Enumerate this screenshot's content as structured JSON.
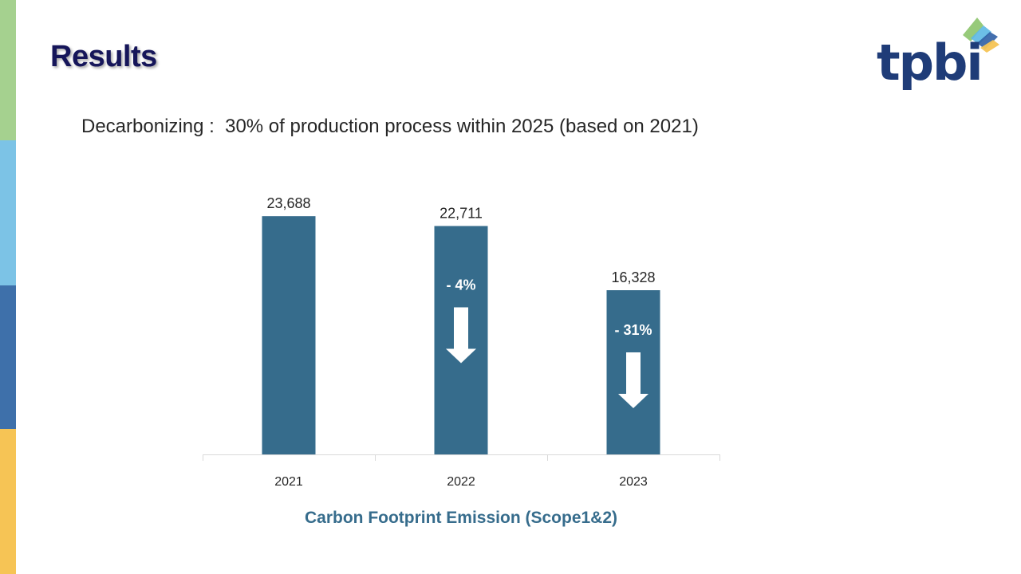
{
  "slide": {
    "title": "Results",
    "subtitle": "Decarbonizing :  30% of production process within 2025 (based on 2021)",
    "logo_text": "tpbi",
    "stripe_colors": [
      "#a5d18f",
      "#7cc3e6",
      "#3e70aa",
      "#f6c455"
    ]
  },
  "chart_data": {
    "type": "bar",
    "title": "Carbon Footprint Emission (Scope1&2)",
    "categories": [
      "2021",
      "2022",
      "2023"
    ],
    "values": [
      23688,
      22711,
      16328
    ],
    "value_labels": [
      "23,688",
      "22,711",
      "16,328"
    ],
    "annotations": [
      {
        "category": "2022",
        "text": "- 4%",
        "icon": "down-arrow-icon"
      },
      {
        "category": "2023",
        "text": "- 31%",
        "icon": "down-arrow-icon"
      }
    ],
    "xlabel": "",
    "ylabel": "",
    "ylim": [
      0,
      26000
    ],
    "grid": false,
    "legend": "none",
    "bar_color": "#366c8c",
    "axis_color": "#d9d9d9"
  }
}
